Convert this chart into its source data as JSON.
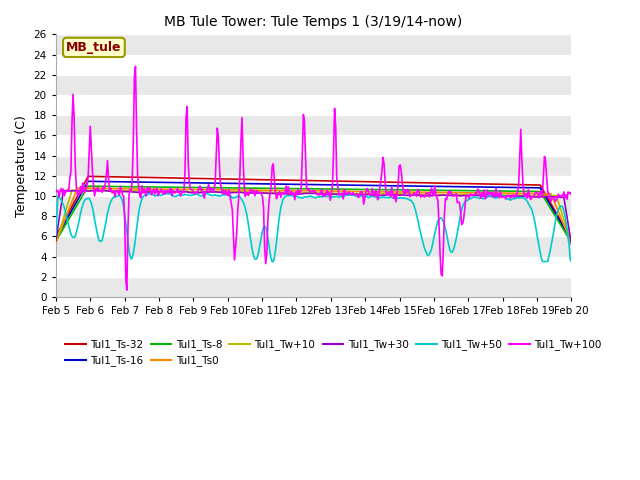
{
  "title": "MB Tule Tower: Tule Temps 1 (3/19/14-now)",
  "ylabel": "Temperature (C)",
  "xlim": [
    0,
    15
  ],
  "ylim": [
    0,
    26
  ],
  "yticks": [
    0,
    2,
    4,
    6,
    8,
    10,
    12,
    14,
    16,
    18,
    20,
    22,
    24,
    26
  ],
  "xtick_labels": [
    "Feb 5",
    "Feb 6",
    "Feb 7",
    "Feb 8",
    "Feb 9",
    "Feb 10",
    "Feb 11",
    "Feb 12",
    "Feb 13",
    "Feb 14",
    "Feb 15",
    "Feb 16",
    "Feb 17",
    "Feb 18",
    "Feb 19",
    "Feb 20"
  ],
  "background_color": "#ffffff",
  "plot_bg_light": "#e8e8e8",
  "plot_bg_dark": "#d0d0d0",
  "series_order": [
    "Tul1_Ts-32",
    "Tul1_Ts-16",
    "Tul1_Ts-8",
    "Tul1_Ts0",
    "Tul1_Tw+10",
    "Tul1_Tw+30",
    "Tul1_Tw+50",
    "Tul1_Tw+100"
  ],
  "series": {
    "Tul1_Ts-32": {
      "color": "#cc0000",
      "lw": 1.2
    },
    "Tul1_Ts-16": {
      "color": "#0000cc",
      "lw": 1.2
    },
    "Tul1_Ts-8": {
      "color": "#00bb00",
      "lw": 1.2
    },
    "Tul1_Ts0": {
      "color": "#ff8800",
      "lw": 1.2
    },
    "Tul1_Tw+10": {
      "color": "#bbbb00",
      "lw": 1.2
    },
    "Tul1_Tw+30": {
      "color": "#9900cc",
      "lw": 1.2
    },
    "Tul1_Tw+50": {
      "color": "#00cccc",
      "lw": 1.2
    },
    "Tul1_Tw+100": {
      "color": "#ff00ff",
      "lw": 1.2
    }
  },
  "legend_order": [
    "Tul1_Ts-32",
    "Tul1_Ts-16",
    "Tul1_Ts-8",
    "Tul1_Ts0",
    "Tul1_Tw+10",
    "Tul1_Tw+30",
    "Tul1_Tw+50",
    "Tul1_Tw+100"
  ],
  "inset_label": "MB_tule",
  "inset_bg": "#ffffcc",
  "inset_border": "#999900",
  "inset_text_color": "#880000"
}
